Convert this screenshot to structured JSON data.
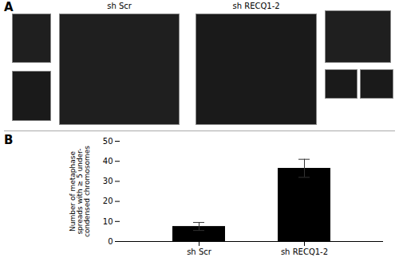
{
  "chart_data": {
    "type": "bar",
    "categories": [
      "sh Scr",
      "sh RECQ1-2"
    ],
    "values": [
      7.5,
      36.5
    ],
    "errors": [
      2.0,
      4.5
    ],
    "y_label": "Number of metaphase\nspreads with ≥ 5 under-\ncondensed chromosomes",
    "ylim": [
      0,
      50
    ],
    "yticks": [
      0,
      10,
      20,
      30,
      40,
      50
    ],
    "grid": false,
    "annotations": [
      "A",
      "sh Scr",
      "sh RECQ1-2",
      "B"
    ]
  }
}
